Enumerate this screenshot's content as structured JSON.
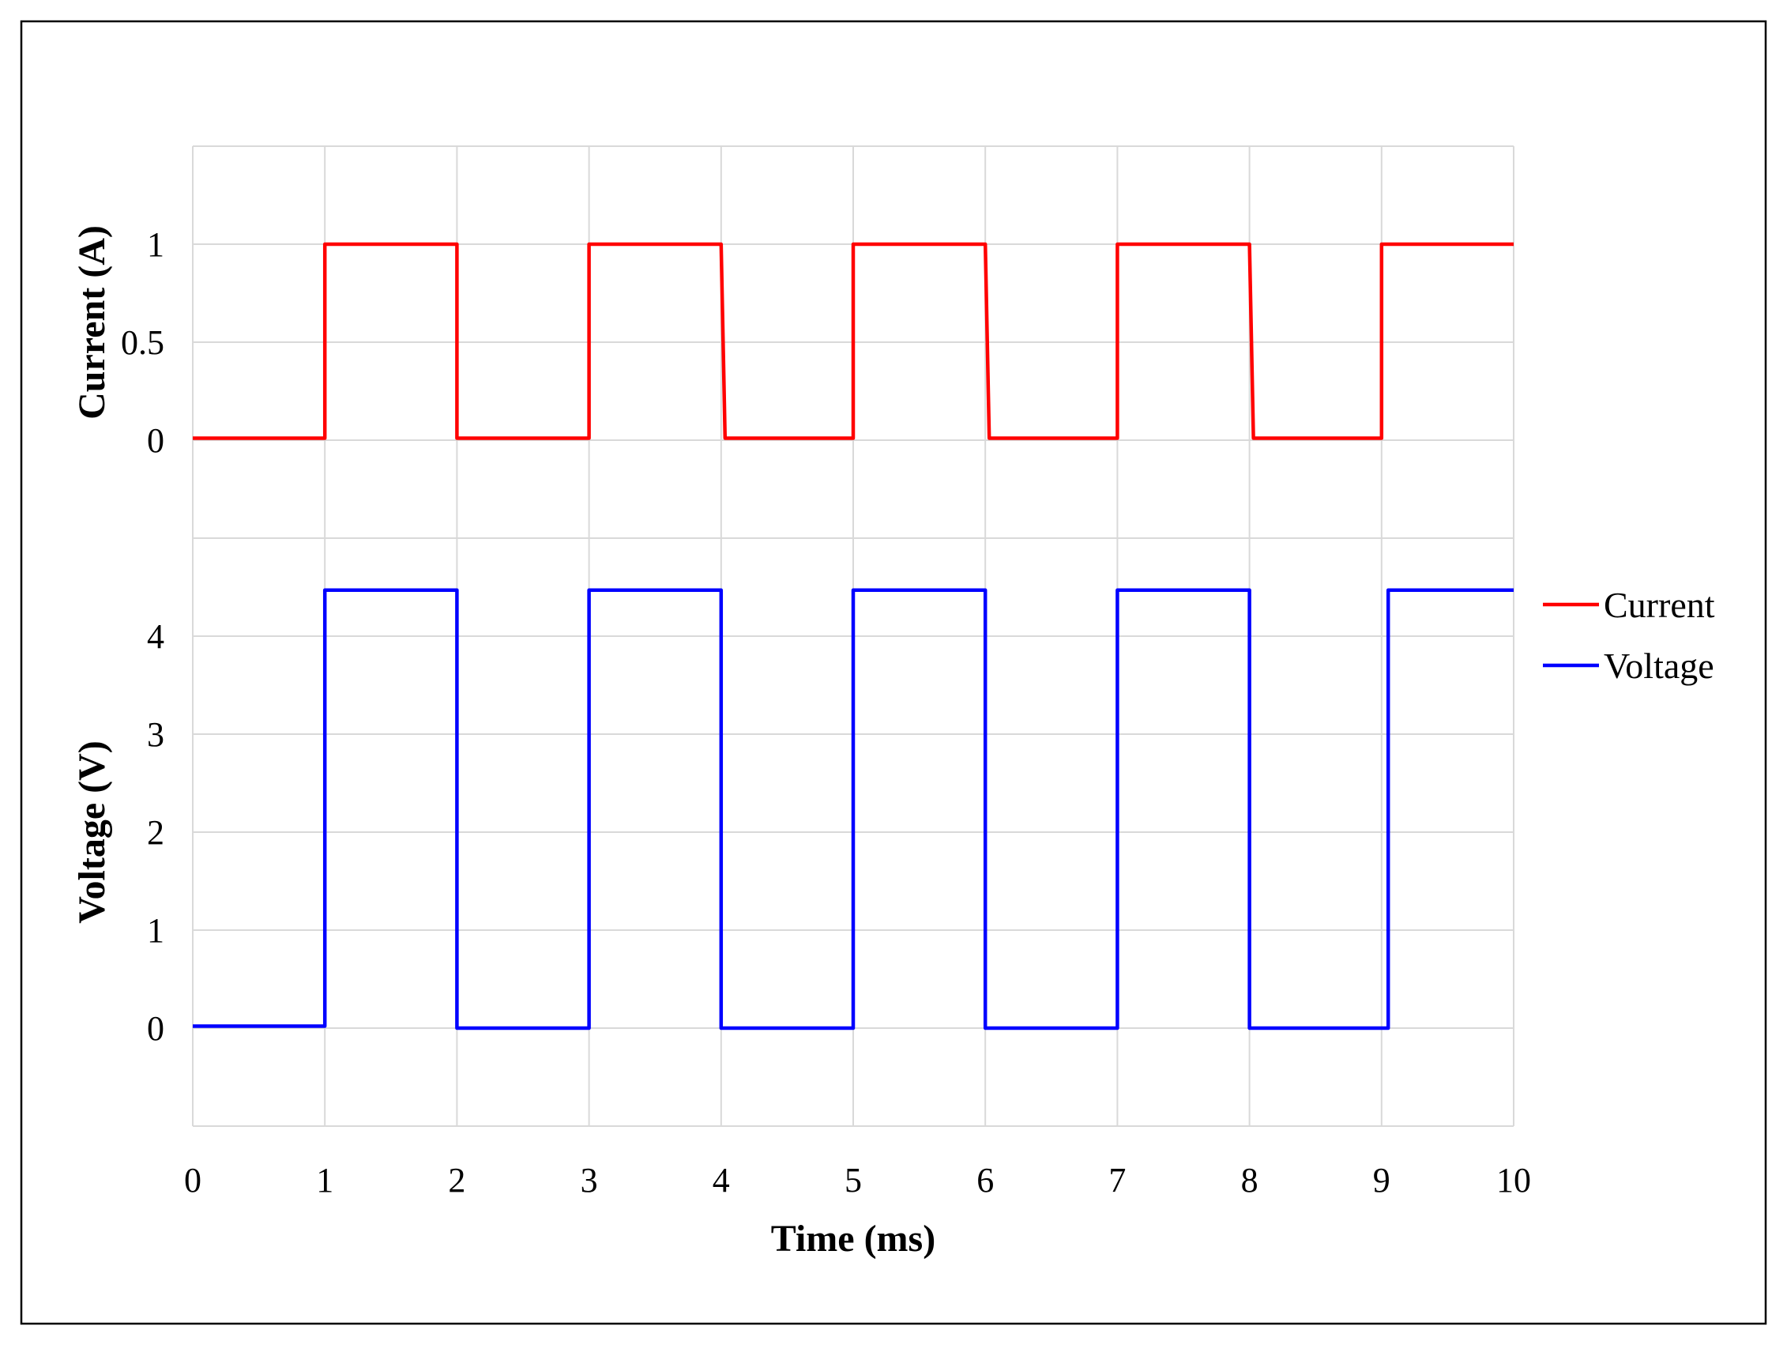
{
  "chart_data": {
    "type": "line",
    "title": "",
    "xlabel": "Time (ms)",
    "xlim": [
      0,
      10
    ],
    "xticks": [
      "0",
      "1",
      "2",
      "3",
      "4",
      "5",
      "6",
      "7",
      "8",
      "9",
      "10"
    ],
    "grid": true,
    "legend_position": "right",
    "legend": [
      "Current",
      "Voltage"
    ],
    "panels": [
      {
        "name": "current-panel",
        "ylabel": "Current (A)",
        "ylim": [
          -0.5,
          1.5
        ],
        "yticks": [
          {
            "value": 0,
            "label": "0"
          },
          {
            "value": 0.5,
            "label": "0.5"
          },
          {
            "value": 1,
            "label": "1"
          }
        ],
        "series": [
          {
            "name": "Current",
            "color": "#ff0000",
            "x": [
              0,
              1.0,
              1.0,
              2.0,
              2.0,
              3.0,
              3.0,
              4.0,
              4.03,
              5.0,
              5.0,
              6.0,
              6.03,
              7.0,
              7.0,
              8.0,
              8.03,
              9.0,
              9.0,
              10.0
            ],
            "y": [
              0.01,
              0.01,
              1.0,
              1.0,
              0.01,
              0.01,
              1.0,
              1.0,
              0.01,
              0.01,
              1.0,
              1.0,
              0.01,
              0.01,
              1.0,
              1.0,
              0.01,
              0.01,
              1.0,
              1.0
            ]
          }
        ]
      },
      {
        "name": "voltage-panel",
        "ylabel": "Voltage (V)",
        "ylim": [
          -1,
          5
        ],
        "yticks": [
          {
            "value": 0,
            "label": "0"
          },
          {
            "value": 1,
            "label": "1"
          },
          {
            "value": 2,
            "label": "2"
          },
          {
            "value": 3,
            "label": "3"
          },
          {
            "value": 4,
            "label": "4"
          }
        ],
        "series": [
          {
            "name": "Voltage",
            "color": "#0000ff",
            "x": [
              0,
              1.0,
              1.0,
              2.0,
              2.0,
              3.0,
              3.0,
              4.0,
              4.0,
              5.0,
              5.0,
              6.0,
              6.0,
              7.0,
              7.0,
              8.0,
              8.0,
              9.05,
              9.05,
              10.0
            ],
            "y": [
              0.02,
              0.02,
              4.47,
              4.47,
              0.0,
              0.0,
              4.47,
              4.47,
              0.0,
              0.0,
              4.47,
              4.47,
              0.0,
              0.0,
              4.47,
              4.47,
              0.0,
              0.0,
              4.47,
              4.47
            ]
          }
        ]
      }
    ]
  }
}
